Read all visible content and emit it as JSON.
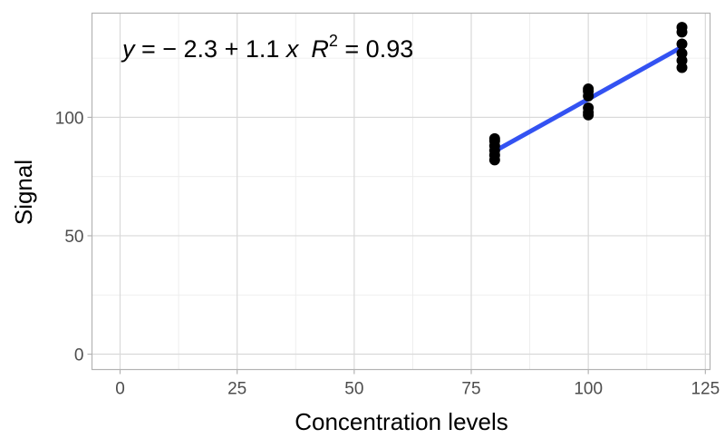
{
  "chart_data": {
    "type": "scatter",
    "title": "",
    "xlabel": "Concentration levels",
    "ylabel": "Signal",
    "xlim": [
      -6,
      126
    ],
    "ylim": [
      -6.5,
      144
    ],
    "x_ticks": [
      0,
      25,
      50,
      75,
      100,
      125
    ],
    "y_ticks": [
      0,
      50,
      100
    ],
    "grid": true,
    "annotation": {
      "y_part": "y",
      "eq_part": " = − 2.3 + 1.1 ",
      "x_part": "x",
      "r_part": "R",
      "sup_part": "2",
      "r2_part": " = 0.93"
    },
    "points": [
      {
        "x": 80,
        "y": 82
      },
      {
        "x": 80,
        "y": 84
      },
      {
        "x": 80,
        "y": 86
      },
      {
        "x": 80,
        "y": 88
      },
      {
        "x": 80,
        "y": 90
      },
      {
        "x": 80,
        "y": 91
      },
      {
        "x": 100,
        "y": 101
      },
      {
        "x": 100,
        "y": 102
      },
      {
        "x": 100,
        "y": 104
      },
      {
        "x": 100,
        "y": 109
      },
      {
        "x": 100,
        "y": 111
      },
      {
        "x": 100,
        "y": 112
      },
      {
        "x": 120,
        "y": 121
      },
      {
        "x": 120,
        "y": 124
      },
      {
        "x": 120,
        "y": 127
      },
      {
        "x": 120,
        "y": 131
      },
      {
        "x": 120,
        "y": 136
      },
      {
        "x": 120,
        "y": 138
      }
    ],
    "fit_line": {
      "intercept": -2.3,
      "slope": 1.1,
      "x_range": [
        80,
        120
      ],
      "color": "#3352f2"
    },
    "point_color": "#000000"
  }
}
